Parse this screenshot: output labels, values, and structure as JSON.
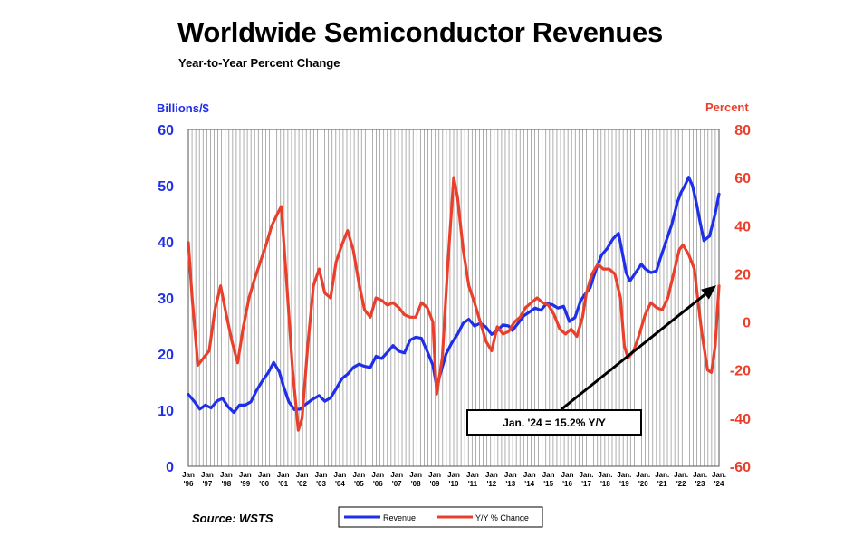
{
  "chart_data": {
    "type": "line",
    "title": "Worldwide Semiconductor Revenues",
    "subtitle": "Year-to-Year Percent Change",
    "source": "Source: WSTS",
    "left_axis": {
      "label": "Billions/$",
      "min": 0,
      "max": 60,
      "ticks": [
        "0",
        "10",
        "20",
        "30",
        "40",
        "50",
        "60"
      ],
      "color": "#1f2ee8"
    },
    "right_axis": {
      "label": "Percent",
      "min": -60,
      "max": 80,
      "ticks": [
        "-60",
        "-40",
        "-20",
        "0",
        "20",
        "40",
        "60",
        "80"
      ],
      "color": "#e8402c"
    },
    "x_range": [
      1996.0,
      2024.0
    ],
    "x_tick_labels": [
      {
        "top": "Jan",
        "bottom": "'96"
      },
      {
        "top": "Jan",
        "bottom": "'97"
      },
      {
        "top": "Jan",
        "bottom": "'98"
      },
      {
        "top": "Jan",
        "bottom": "'99"
      },
      {
        "top": "Jan",
        "bottom": "'00"
      },
      {
        "top": "Jan",
        "bottom": "'01"
      },
      {
        "top": "Jan",
        "bottom": "'02"
      },
      {
        "top": "Jan",
        "bottom": "'03"
      },
      {
        "top": "Jan",
        "bottom": "'04"
      },
      {
        "top": "Jan",
        "bottom": "'05"
      },
      {
        "top": "Jan",
        "bottom": "'06"
      },
      {
        "top": "Jan",
        "bottom": "'07"
      },
      {
        "top": "Jan",
        "bottom": "'08"
      },
      {
        "top": "Jan",
        "bottom": "'09"
      },
      {
        "top": "Jan",
        "bottom": "'10"
      },
      {
        "top": "Jan",
        "bottom": "'11"
      },
      {
        "top": "Jan",
        "bottom": "'12"
      },
      {
        "top": "Jan",
        "bottom": "'13"
      },
      {
        "top": "Jan",
        "bottom": "'14"
      },
      {
        "top": "Jan",
        "bottom": "'15"
      },
      {
        "top": "Jan",
        "bottom": "'16"
      },
      {
        "top": "Jan.",
        "bottom": "'17"
      },
      {
        "top": "Jan.",
        "bottom": "'18"
      },
      {
        "top": "Jan.",
        "bottom": "'19"
      },
      {
        "top": "Jan.",
        "bottom": "'20"
      },
      {
        "top": "Jan.",
        "bottom": "'21"
      },
      {
        "top": "Jan.",
        "bottom": "'22"
      },
      {
        "top": "Jan.",
        "bottom": "'23"
      },
      {
        "top": "Jan.",
        "bottom": "'24"
      }
    ],
    "grid": "vertical",
    "series": [
      {
        "name": "Revenue",
        "axis": "left",
        "color": "#1f2ee8",
        "x": [
          1996.0,
          1996.3,
          1996.6,
          1996.9,
          1997.2,
          1997.5,
          1997.8,
          1998.1,
          1998.4,
          1998.7,
          1999.0,
          1999.3,
          1999.6,
          1999.9,
          2000.2,
          2000.5,
          2000.8,
          2001.0,
          2001.3,
          2001.6,
          2001.9,
          2002.1,
          2002.5,
          2002.9,
          2003.2,
          2003.5,
          2003.8,
          2004.1,
          2004.4,
          2004.7,
          2005.0,
          2005.3,
          2005.6,
          2005.9,
          2006.2,
          2006.5,
          2006.8,
          2007.1,
          2007.4,
          2007.7,
          2008.0,
          2008.3,
          2008.6,
          2008.9,
          2009.1,
          2009.3,
          2009.6,
          2009.9,
          2010.2,
          2010.5,
          2010.8,
          2011.1,
          2011.4,
          2011.7,
          2012.0,
          2012.3,
          2012.6,
          2012.9,
          2013.1,
          2013.4,
          2013.7,
          2014.0,
          2014.3,
          2014.6,
          2014.9,
          2015.2,
          2015.5,
          2015.8,
          2016.1,
          2016.4,
          2016.7,
          2016.9,
          2017.2,
          2017.5,
          2017.8,
          2018.1,
          2018.4,
          2018.7,
          2018.9,
          2019.1,
          2019.3,
          2019.6,
          2019.9,
          2020.1,
          2020.4,
          2020.7,
          2020.9,
          2021.2,
          2021.5,
          2021.8,
          2022.0,
          2022.2,
          2022.4,
          2022.6,
          2022.8,
          2023.0,
          2023.2,
          2023.5,
          2023.8,
          2024.0
        ],
        "values": [
          12.8,
          11.6,
          10.2,
          10.9,
          10.4,
          11.6,
          12.1,
          10.6,
          9.6,
          10.9,
          10.9,
          11.5,
          13.5,
          15.2,
          16.6,
          18.5,
          16.8,
          14.5,
          11.5,
          10.1,
          10.2,
          10.8,
          11.8,
          12.6,
          11.6,
          12.2,
          13.8,
          15.6,
          16.4,
          17.6,
          18.2,
          17.8,
          17.6,
          19.6,
          19.2,
          20.3,
          21.5,
          20.5,
          20.2,
          22.5,
          23.0,
          22.8,
          20.5,
          18.0,
          14.2,
          16.5,
          20.0,
          22.0,
          23.5,
          25.5,
          26.2,
          25.0,
          25.5,
          24.8,
          23.5,
          24.2,
          25.2,
          25.0,
          24.2,
          25.5,
          26.8,
          27.5,
          28.2,
          27.8,
          29.0,
          28.8,
          28.2,
          28.5,
          25.8,
          26.5,
          29.5,
          30.5,
          31.8,
          35.0,
          37.6,
          38.8,
          40.5,
          41.5,
          38.0,
          34.5,
          33.0,
          34.5,
          36.0,
          35.2,
          34.5,
          34.8,
          37.0,
          40.0,
          43.0,
          47.0,
          48.8,
          50.0,
          51.5,
          50.0,
          47.0,
          43.5,
          40.2,
          41.0,
          45.0,
          48.5
        ]
      },
      {
        "name": "Y/Y % Change",
        "axis": "right",
        "color": "#e8402c",
        "x": [
          1996.0,
          1996.2,
          1996.5,
          1996.8,
          1997.1,
          1997.4,
          1997.7,
          1998.0,
          1998.3,
          1998.6,
          1998.9,
          1999.2,
          1999.5,
          1999.8,
          2000.1,
          2000.4,
          2000.7,
          2000.9,
          2001.2,
          2001.5,
          2001.8,
          2002.0,
          2002.3,
          2002.6,
          2002.9,
          2003.2,
          2003.5,
          2003.8,
          2004.1,
          2004.4,
          2004.7,
          2005.0,
          2005.3,
          2005.6,
          2005.9,
          2006.2,
          2006.5,
          2006.8,
          2007.1,
          2007.4,
          2007.7,
          2008.0,
          2008.3,
          2008.6,
          2008.9,
          2009.1,
          2009.4,
          2009.7,
          2010.0,
          2010.2,
          2010.5,
          2010.8,
          2011.1,
          2011.4,
          2011.7,
          2012.0,
          2012.3,
          2012.6,
          2012.9,
          2013.2,
          2013.5,
          2013.8,
          2014.1,
          2014.4,
          2014.7,
          2015.0,
          2015.3,
          2015.6,
          2015.9,
          2016.2,
          2016.5,
          2016.8,
          2017.0,
          2017.3,
          2017.6,
          2017.9,
          2018.2,
          2018.5,
          2018.8,
          2019.0,
          2019.2,
          2019.5,
          2019.8,
          2020.1,
          2020.4,
          2020.7,
          2021.0,
          2021.3,
          2021.6,
          2021.9,
          2022.1,
          2022.4,
          2022.7,
          2022.9,
          2023.1,
          2023.4,
          2023.6,
          2023.8,
          2024.0
        ],
        "values": [
          33,
          10,
          -18,
          -15,
          -12,
          5,
          15,
          3,
          -8,
          -17,
          -2,
          10,
          18,
          25,
          32,
          40,
          45,
          48,
          15,
          -20,
          -45,
          -40,
          -10,
          15,
          22,
          12,
          10,
          25,
          32,
          38,
          30,
          16,
          5,
          2,
          10,
          9,
          7,
          8,
          6,
          3,
          2,
          2,
          8,
          6,
          0,
          -30,
          -15,
          25,
          60,
          52,
          30,
          15,
          8,
          0,
          -8,
          -12,
          -2,
          -5,
          -4,
          0,
          2,
          6,
          8,
          10,
          8,
          7,
          3,
          -3,
          -5,
          -3,
          -6,
          2,
          12,
          20,
          24,
          22,
          22,
          20,
          10,
          -10,
          -15,
          -12,
          -5,
          3,
          8,
          6,
          5,
          10,
          20,
          30,
          32,
          28,
          22,
          8,
          -5,
          -20,
          -21,
          -10,
          15
        ]
      }
    ],
    "annotation": {
      "text": "Jan. '24 = 15.2% Y/Y",
      "points_to": {
        "x": 2024.0,
        "y_percent": 15.2
      }
    },
    "legend": {
      "position": "bottom-center",
      "entries": [
        "Revenue",
        "Y/Y % Change"
      ]
    }
  }
}
